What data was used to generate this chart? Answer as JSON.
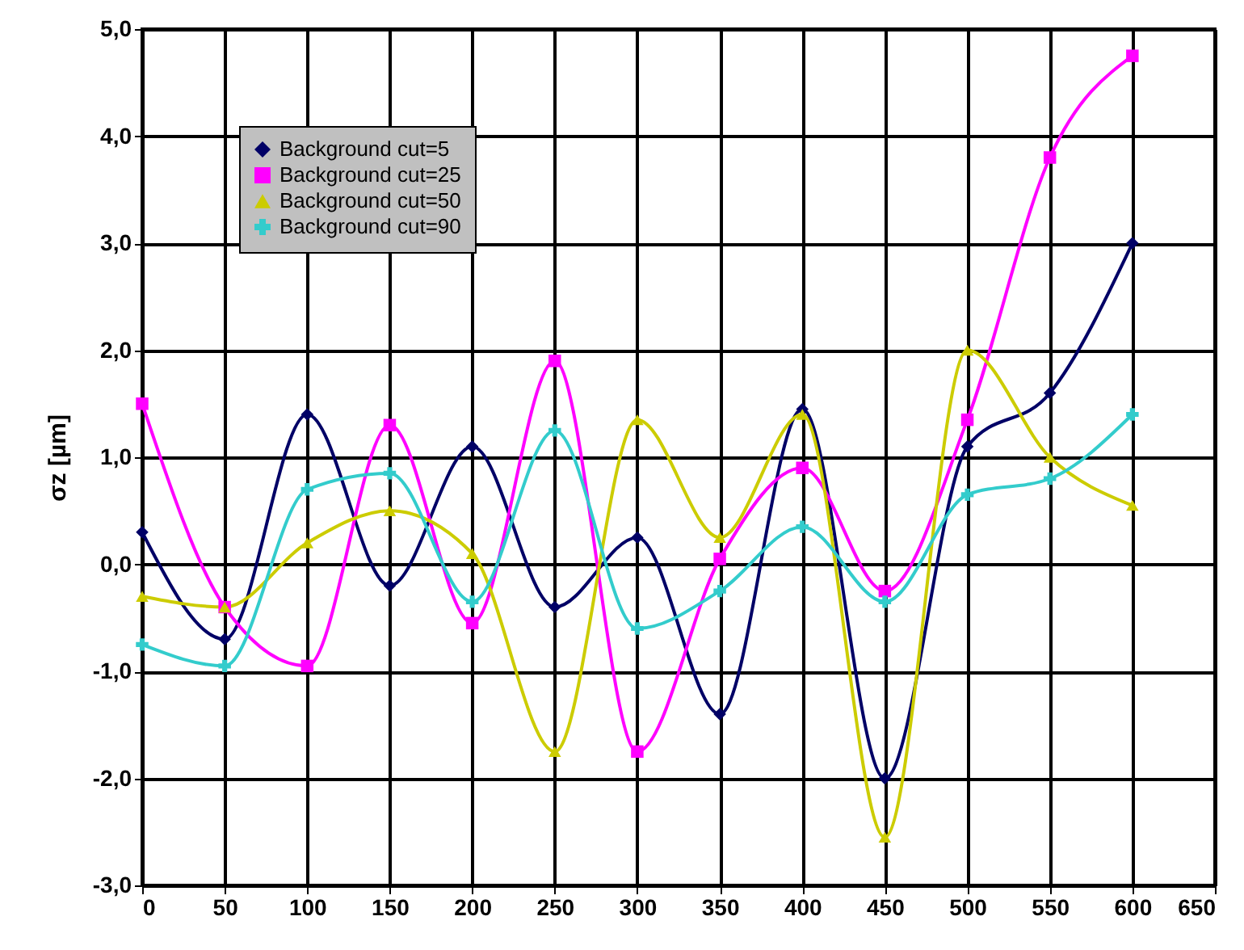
{
  "chart_data": {
    "type": "line",
    "ylabel": "σz [µm]",
    "x": [
      0,
      50,
      100,
      150,
      200,
      250,
      300,
      350,
      400,
      450,
      500,
      550,
      600
    ],
    "xlim": [
      0,
      650
    ],
    "xticks": [
      0,
      50,
      100,
      150,
      200,
      250,
      300,
      350,
      400,
      450,
      500,
      550,
      600,
      650
    ],
    "ylim": [
      -3,
      5
    ],
    "yticks": [
      {
        "value": -3,
        "label": "-3,0"
      },
      {
        "value": -2,
        "label": "-2,0"
      },
      {
        "value": -1,
        "label": "-1,0"
      },
      {
        "value": 0,
        "label": "0,0"
      },
      {
        "value": 1,
        "label": "1,0"
      },
      {
        "value": 2,
        "label": "2,0"
      },
      {
        "value": 3,
        "label": "3,0"
      },
      {
        "value": 4,
        "label": "4,0"
      },
      {
        "value": 5,
        "label": "5,0"
      }
    ],
    "grid": true,
    "legend": "top left",
    "series": [
      {
        "name": "Background cut=5",
        "color": "#000066",
        "marker": "diamond",
        "values": [
          0.3,
          -0.7,
          1.4,
          -0.2,
          1.1,
          -0.4,
          0.25,
          -1.4,
          1.45,
          -2.0,
          1.1,
          1.6,
          3.0
        ]
      },
      {
        "name": "Background cut=25",
        "color": "#ff00ff",
        "marker": "square",
        "values": [
          1.5,
          -0.4,
          -0.95,
          1.3,
          -0.55,
          1.9,
          -1.75,
          0.05,
          0.9,
          -0.25,
          1.35,
          3.8,
          4.75
        ]
      },
      {
        "name": "Background cut=50",
        "color": "#cccc00",
        "marker": "triangle",
        "values": [
          -0.3,
          -0.4,
          0.2,
          0.5,
          0.1,
          -1.75,
          1.35,
          0.25,
          1.4,
          -2.55,
          2.0,
          1.0,
          0.55
        ]
      },
      {
        "name": "Background cut=90",
        "color": "#33cccc",
        "marker": "cross",
        "values": [
          -0.75,
          -0.95,
          0.7,
          0.85,
          -0.35,
          1.25,
          -0.6,
          -0.25,
          0.35,
          -0.35,
          0.65,
          0.8,
          1.4
        ]
      }
    ]
  }
}
